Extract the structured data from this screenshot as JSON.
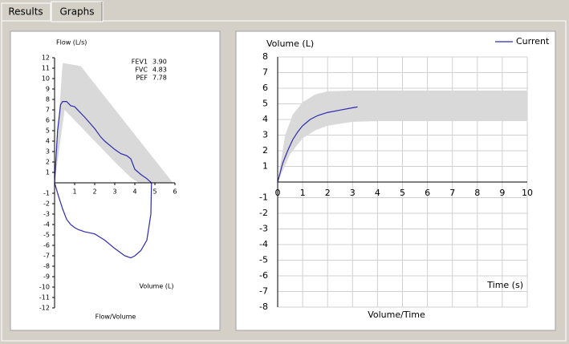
{
  "tabs": [
    "Results",
    "Graphs"
  ],
  "chart_data": [
    {
      "type": "line",
      "title": "Flow/Volume",
      "ylabel": "Flow (L/s)",
      "xlabel": "Volume (L)",
      "xlim": [
        0,
        6
      ],
      "xticks": [
        1,
        2,
        3,
        4,
        5,
        6
      ],
      "ylim": [
        -12,
        12
      ],
      "yticks": [
        12,
        11,
        10,
        9,
        8,
        7,
        6,
        5,
        4,
        3,
        2,
        1,
        -1,
        -2,
        -3,
        -4,
        -5,
        -6,
        -7,
        -8,
        -9,
        -10,
        -11,
        -12
      ],
      "grid": false,
      "stats": {
        "labels": [
          "FEV1",
          "FVC",
          "PEF"
        ],
        "values": [
          3.9,
          4.83,
          7.78
        ],
        "value_labels": [
          "3.90",
          "4.83",
          "7.78"
        ]
      },
      "series": [
        {
          "type": "area",
          "color": "#d9d9d9",
          "x": [
            0,
            0.4,
            1.3,
            5.9,
            4.2,
            3.8,
            3,
            2,
            1,
            0.5,
            0
          ],
          "values": [
            0,
            11.5,
            11.2,
            0,
            0,
            0.5,
            2,
            4,
            6,
            7,
            0
          ]
        },
        {
          "type": "line",
          "color": "#2b2bb0",
          "x": [
            0,
            0.15,
            0.3,
            0.4,
            0.6,
            0.8,
            1,
            1.2,
            1.5,
            2,
            2.3,
            2.5,
            3,
            3.3,
            3.6,
            3.8,
            4,
            4.3,
            4.6,
            4.83,
            4.8,
            4.6,
            4.3,
            4,
            3.8,
            3.5,
            3,
            2.5,
            2,
            1.5,
            1.2,
            1,
            0.8,
            0.6,
            0.4,
            0.2,
            0
          ],
          "values": [
            0,
            5,
            7.5,
            7.8,
            7.8,
            7.4,
            7.3,
            6.9,
            6.3,
            5.2,
            4.4,
            4,
            3.2,
            2.8,
            2.6,
            2.3,
            1.3,
            0.8,
            0.4,
            0,
            -3,
            -5.5,
            -6.5,
            -7,
            -7.2,
            -7,
            -6.3,
            -5.5,
            -4.9,
            -4.7,
            -4.5,
            -4.3,
            -4,
            -3.5,
            -2.5,
            -1.3,
            0
          ]
        }
      ]
    },
    {
      "type": "line",
      "title": "Volume/Time",
      "ylabel": "Volume (L)",
      "xlabel": "Time (s)",
      "xlim": [
        0,
        10
      ],
      "xticks": [
        0,
        1,
        2,
        3,
        4,
        5,
        6,
        7,
        8,
        9,
        10
      ],
      "ylim": [
        -8,
        8
      ],
      "yticks": [
        8,
        7,
        6,
        5,
        4,
        3,
        2,
        1,
        -1,
        -2,
        -3,
        -4,
        -5,
        -6,
        -7,
        -8
      ],
      "grid": true,
      "legend": "top-right",
      "series": [
        {
          "type": "area",
          "color": "#d9d9d9",
          "x": [
            0,
            0.3,
            0.6,
            1,
            1.5,
            2,
            3,
            10,
            10,
            4,
            3,
            2,
            1.5,
            1,
            0.5,
            0
          ],
          "values": [
            0,
            3,
            4.3,
            5.1,
            5.6,
            5.8,
            5.85,
            5.85,
            3.9,
            3.9,
            3.85,
            3.6,
            3.3,
            2.8,
            1.8,
            0
          ]
        },
        {
          "type": "line",
          "name": "Current",
          "color": "#2b2bb0",
          "x": [
            0,
            0.2,
            0.4,
            0.6,
            0.8,
            1,
            1.3,
            1.6,
            2,
            2.5,
            3,
            3.2
          ],
          "values": [
            0,
            1.2,
            2,
            2.7,
            3.2,
            3.6,
            4,
            4.25,
            4.45,
            4.6,
            4.75,
            4.8
          ]
        }
      ]
    }
  ]
}
